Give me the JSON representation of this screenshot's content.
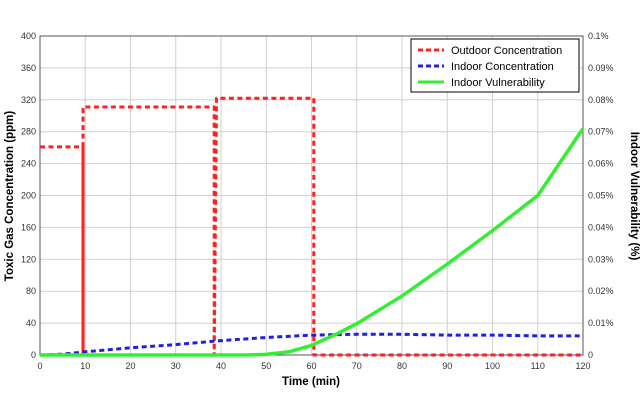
{
  "chart_data": {
    "type": "line",
    "xlabel": "Time (min)",
    "ylabel": "Toxic Gas Concentration (ppm)",
    "y2label": "Indoor Vulnerability (%)",
    "xlim": [
      0,
      120
    ],
    "ylim": [
      0,
      400
    ],
    "y2lim": [
      0,
      0.1
    ],
    "x_ticks": [
      "0",
      "10",
      "20",
      "30",
      "40",
      "50",
      "60",
      "70",
      "80",
      "90",
      "100",
      "110",
      "120"
    ],
    "y_ticks": [
      "0",
      "40",
      "80",
      "120",
      "160",
      "200",
      "240",
      "280",
      "320",
      "360",
      "400"
    ],
    "y2_ticks": [
      "0",
      "0.01%",
      "0.02%",
      "0.03%",
      "0.04%",
      "0.05%",
      "0.06%",
      "0.07%",
      "0.08%",
      "0.09%",
      "0.1%"
    ],
    "grid": true,
    "legend_position": "top-right",
    "series": [
      {
        "name": "Outdoor Concentration",
        "axis": "left",
        "style": "dashed",
        "color": "#ff2020",
        "points": [
          [
            0,
            261
          ],
          [
            9.5,
            261
          ],
          [
            9.5,
            0
          ],
          [
            9.5,
            311
          ],
          [
            38.5,
            311
          ],
          [
            38.5,
            0
          ],
          [
            39,
            322
          ],
          [
            60.5,
            322
          ],
          [
            60.5,
            0
          ],
          [
            120,
            0
          ]
        ]
      },
      {
        "name": "Indoor Concentration",
        "axis": "left",
        "style": "dashed",
        "color": "#1f1fe6",
        "points": [
          [
            0,
            0
          ],
          [
            5,
            1
          ],
          [
            10,
            4
          ],
          [
            20,
            9
          ],
          [
            30,
            13
          ],
          [
            40,
            18
          ],
          [
            50,
            22
          ],
          [
            60,
            25
          ],
          [
            70,
            26
          ],
          [
            80,
            26
          ],
          [
            90,
            25
          ],
          [
            100,
            25
          ],
          [
            110,
            24
          ],
          [
            120,
            24
          ]
        ]
      },
      {
        "name": "Indoor Vulnerability",
        "axis": "right",
        "style": "solid",
        "color": "#33ee33",
        "points": [
          [
            0,
            0
          ],
          [
            45,
            0
          ],
          [
            50,
            0.0002
          ],
          [
            55,
            0.001
          ],
          [
            60,
            0.003
          ],
          [
            65,
            0.0062
          ],
          [
            70,
            0.0098
          ],
          [
            80,
            0.0185
          ],
          [
            90,
            0.0285
          ],
          [
            100,
            0.039
          ],
          [
            110,
            0.05
          ],
          [
            120,
            0.071
          ]
        ]
      }
    ]
  }
}
